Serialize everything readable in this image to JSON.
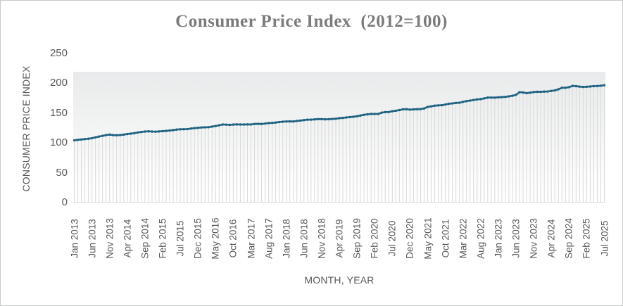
{
  "colors": {
    "line": "#1f6382",
    "drop_line": "#d9d9d9",
    "axis_line": "#dcdcdc",
    "tick_text": "#595959",
    "title_text": "#7b7b7b",
    "frame_border": "#c9caca",
    "plot_band": "#e9eaeb"
  },
  "chart_data": {
    "type": "line",
    "title": "Consumer Price Index  (2012=100)",
    "xlabel": "MONTH, YEAR",
    "ylabel": "CONSUMER PRICE INDEX",
    "ylim": [
      0,
      250
    ],
    "yticks": [
      0,
      50,
      100,
      150,
      200,
      250
    ],
    "grid": "vertical drop lines at every data point, no horizontal gridlines",
    "legend_position": "none",
    "x_start": "Jan 2013",
    "x_end": "Jul 2025",
    "x_tick_every_n_points": 5,
    "x_tick_labels": [
      "Jan 2013",
      "Jun 2013",
      "Nov 2013",
      "Apr 2014",
      "Sep 2014",
      "Feb 2015",
      "Jul 2015",
      "Dec 2015",
      "May 2016",
      "Oct 2016",
      "Mar 2017",
      "Aug 2017",
      "Jan 2018",
      "Jun 2018",
      "Nov 2018",
      "Apr 2019",
      "Sep 2019",
      "Feb 2020",
      "Jul 2020",
      "Dec 2020",
      "May 2021",
      "Oct 2021",
      "Mar 2022",
      "Aug 2022",
      "Jan 2023",
      "Jun 2023",
      "Nov 2023",
      "Apr 2024",
      "Sep 2024",
      "Feb 2025",
      "Jul 2025"
    ],
    "series": [
      {
        "name": "Consumer Price Index",
        "color": "#1f6382",
        "marker": "circle",
        "values": [
          104.4,
          105.2,
          105.8,
          106.5,
          107.0,
          108.0,
          109.4,
          110.7,
          111.9,
          113.2,
          114.0,
          113.1,
          112.9,
          113.2,
          114.0,
          114.9,
          115.6,
          116.4,
          117.6,
          118.4,
          119.1,
          119.5,
          119.1,
          118.9,
          119.3,
          119.8,
          120.2,
          120.9,
          121.5,
          122.4,
          122.9,
          123.0,
          123.2,
          124.1,
          124.8,
          125.3,
          126.0,
          126.2,
          126.4,
          127.4,
          128.4,
          129.6,
          130.9,
          130.7,
          130.3,
          130.8,
          131.1,
          130.9,
          130.9,
          131.1,
          131.0,
          131.9,
          132.0,
          131.8,
          132.5,
          133.3,
          133.6,
          134.2,
          135.0,
          135.6,
          136.0,
          136.1,
          136.0,
          136.9,
          137.5,
          138.3,
          139.0,
          139.0,
          139.5,
          140.0,
          139.9,
          139.6,
          139.8,
          140.2,
          140.6,
          141.5,
          142.0,
          142.7,
          143.3,
          143.9,
          144.8,
          146.0,
          147.2,
          148.0,
          148.7,
          148.6,
          148.6,
          150.8,
          151.7,
          151.8,
          153.2,
          154.0,
          155.1,
          156.4,
          156.6,
          155.8,
          156.3,
          156.6,
          156.8,
          157.8,
          160.4,
          161.3,
          162.5,
          162.9,
          163.2,
          164.4,
          165.7,
          166.2,
          167.1,
          167.4,
          168.9,
          170.1,
          171.0,
          172.0,
          172.9,
          173.5,
          174.7,
          176.0,
          176.1,
          175.9,
          176.5,
          176.8,
          177.2,
          178.1,
          179.1,
          180.7,
          185.1,
          184.6,
          183.5,
          184.3,
          185.3,
          185.8,
          185.7,
          186.1,
          186.3,
          187.2,
          188.1,
          189.9,
          192.5,
          192.5,
          193.5,
          195.6,
          195.2,
          194.4,
          193.9,
          194.2,
          194.6,
          195.2,
          195.4,
          195.9,
          196.8
        ]
      }
    ]
  }
}
